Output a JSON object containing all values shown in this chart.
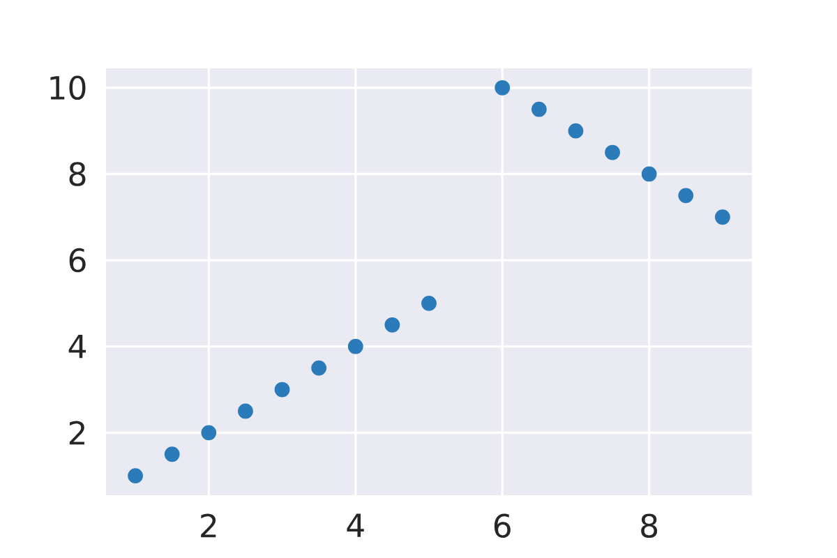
{
  "chart_data": {
    "type": "scatter",
    "x": [
      1,
      1.5,
      2,
      2.5,
      3,
      3.5,
      4,
      4.5,
      5,
      6,
      6.5,
      7,
      7.5,
      8,
      8.5,
      9
    ],
    "values": [
      1,
      1.5,
      2,
      2.5,
      3,
      3.5,
      4,
      4.5,
      5,
      10,
      9.5,
      9,
      8.5,
      8,
      7.5,
      7
    ],
    "color": "#2b7bba",
    "marker": "circle",
    "xlim": [
      0.6,
      9.4
    ],
    "ylim": [
      0.55,
      10.45
    ],
    "xticks": [
      2,
      4,
      6,
      8
    ],
    "yticks": [
      2,
      4,
      6,
      8,
      10
    ],
    "grid": true
  }
}
